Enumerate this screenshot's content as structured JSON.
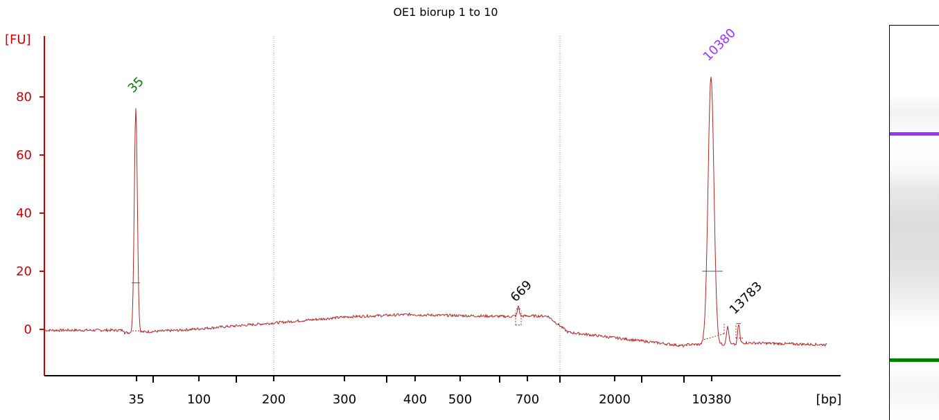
{
  "chart_data": {
    "type": "line",
    "title": "OE1 biorup 1 to 10",
    "ylabel": "[FU]",
    "xlabel": "[bp]",
    "ylim": [
      -16,
      102
    ],
    "y_ticks": [
      0,
      20,
      40,
      60,
      80
    ],
    "x_ticks": [
      "35",
      "100",
      "200",
      "300",
      "400",
      "500",
      "700",
      "2000",
      "10380"
    ],
    "x_divider_ticks": 6,
    "peaks": [
      {
        "label": "35",
        "size_bp": 35,
        "height_fu": 77,
        "color": "#008000"
      },
      {
        "label": "669",
        "size_bp": 669,
        "height_fu": 7,
        "color": "#000000"
      },
      {
        "label": "10380",
        "size_bp": 10380,
        "height_fu": 89,
        "color": "#9933ff"
      },
      {
        "label": "13783",
        "size_bp": 13783,
        "height_fu": 2,
        "color": "#000000"
      }
    ],
    "trace_color": "#b22222",
    "axis_color": "#cc0000"
  },
  "gel": {
    "bands": [
      {
        "label": "10380",
        "color": "#9933ff"
      },
      {
        "label": "35",
        "color": "#008000"
      }
    ]
  }
}
